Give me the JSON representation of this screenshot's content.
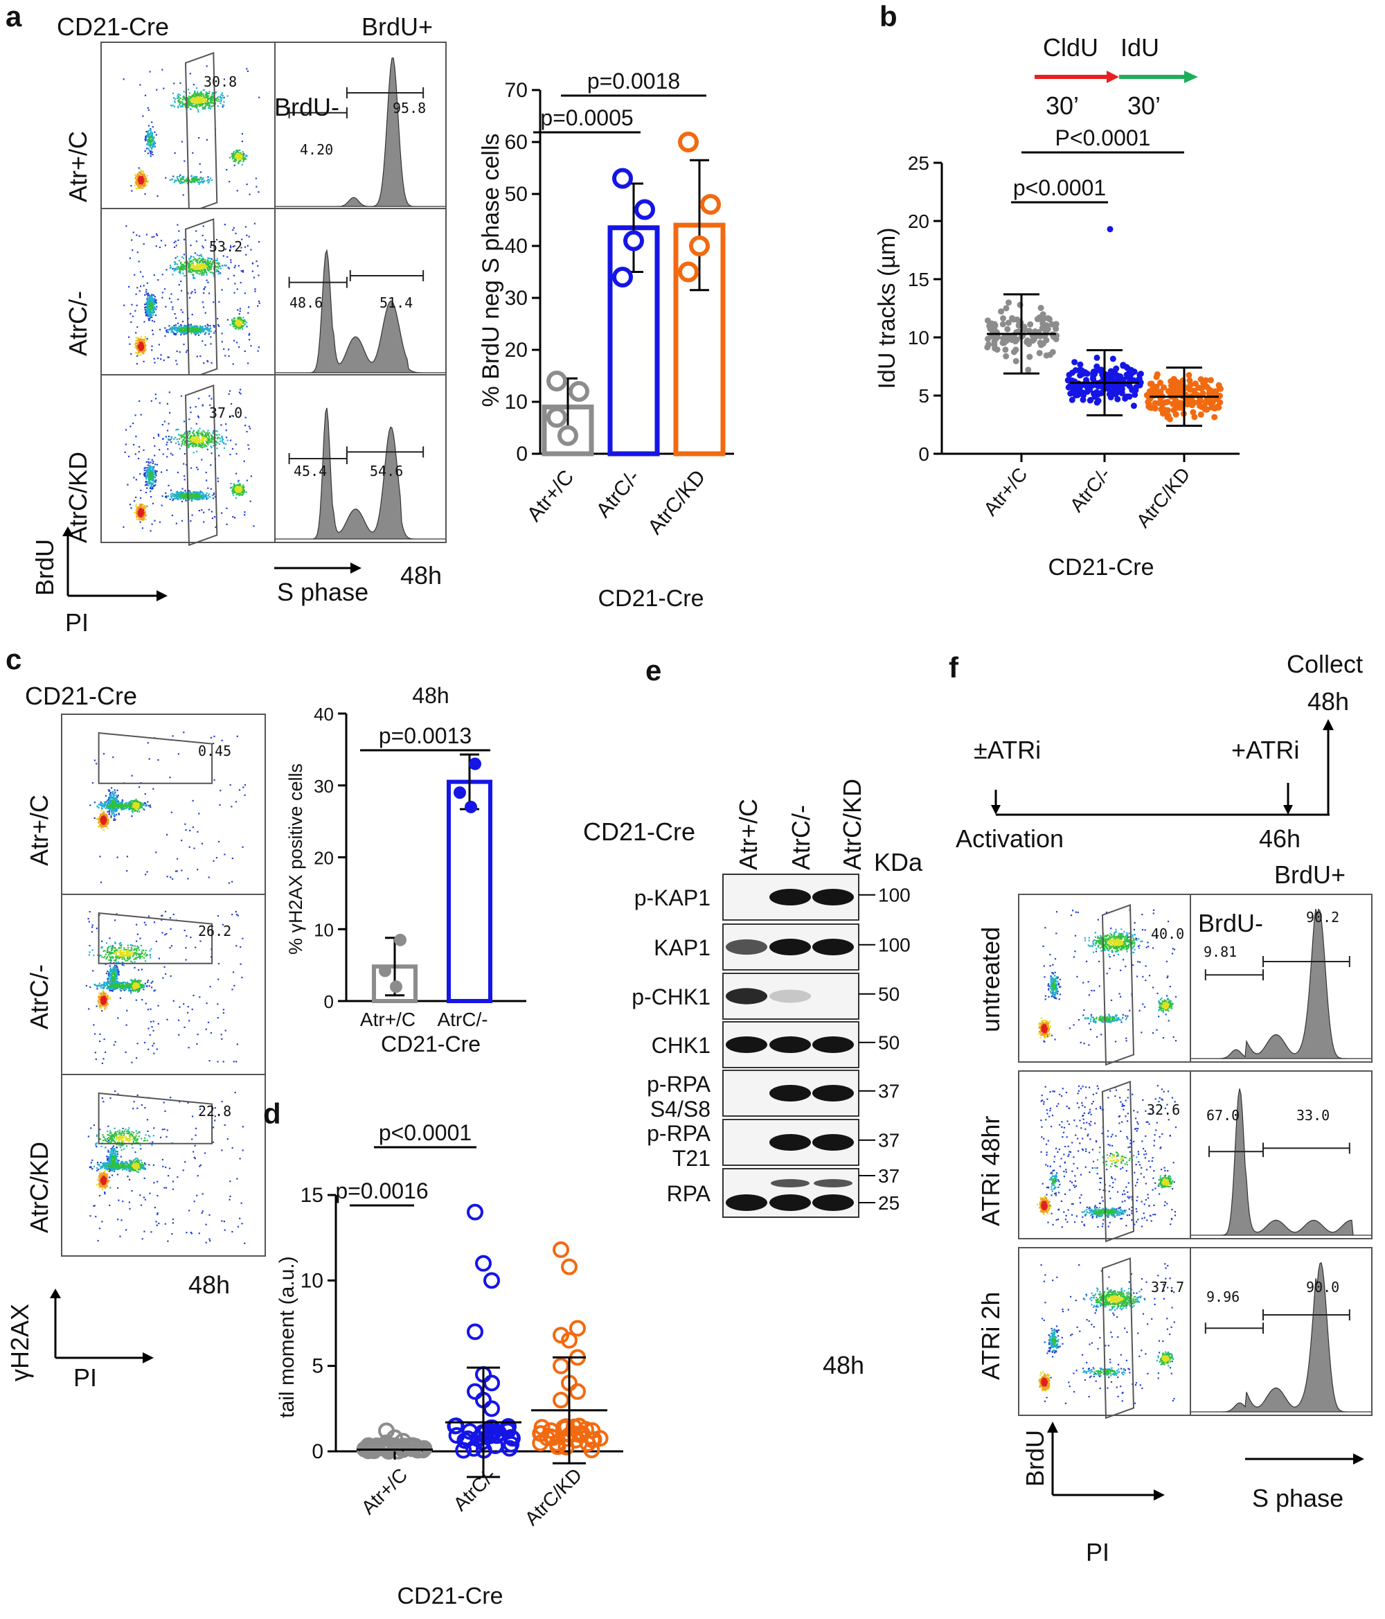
{
  "panel_letters": {
    "a": "a",
    "b": "b",
    "c": "c",
    "d": "d",
    "e": "e",
    "f": "f"
  },
  "colors": {
    "gray": "#8c8c8c",
    "blue": "#1515e6",
    "orange": "#f26a10",
    "red": "#e82020",
    "green": "#1eae5a",
    "hist_fill": "#8a8a8a"
  },
  "panel_a": {
    "cre_label": "CD21-Cre",
    "rows": [
      {
        "label": "Atr+/C",
        "gate": "30.8",
        "neg": "4.20",
        "pos": "95.8"
      },
      {
        "label": "AtrC/-",
        "gate": "53.2",
        "neg": "48.6",
        "pos": "51.4"
      },
      {
        "label": "AtrC/KD",
        "gate": "37.0",
        "neg": "45.4",
        "pos": "54.6"
      }
    ],
    "brdu_pos": "BrdU+",
    "brdu_neg": "BrdU-",
    "axis_y": "BrdU",
    "axis_x": "PI",
    "s_phase": "S phase",
    "time": "48h"
  },
  "chart_a": {
    "type": "bar",
    "categories": [
      "Atr+/C",
      "AtrC/-",
      "AtrC/KD"
    ],
    "values": [
      9,
      43.5,
      44
    ],
    "sd": [
      5.5,
      8.5,
      12.5
    ],
    "points": [
      [
        14,
        12,
        3.5,
        7
      ],
      [
        53,
        47,
        41,
        34
      ],
      [
        60,
        48,
        40,
        35
      ]
    ],
    "ylabel": "% BrdU neg S phase cells",
    "xlabel": "CD21-Cre",
    "ylim": [
      0,
      70
    ],
    "yticks": [
      0,
      10,
      20,
      30,
      40,
      50,
      60,
      70
    ],
    "pvalues": [
      "p=0.0005",
      "p=0.0018"
    ]
  },
  "panel_b": {
    "cldu": "CldU",
    "idu": "IdU",
    "t1": "30’",
    "t2": "30’"
  },
  "chart_b": {
    "type": "scatter",
    "categories": [
      "Atr+/C",
      "AtrC/-",
      "AtrC/KD"
    ],
    "means": [
      10.3,
      6.1,
      4.9
    ],
    "sd": [
      3.4,
      2.8,
      2.5
    ],
    "ylabel": "IdU tracks (µm)",
    "xlabel": "CD21-Cre",
    "ylim": [
      0,
      25
    ],
    "yticks": [
      0,
      5,
      10,
      15,
      20,
      25
    ],
    "pvalues": [
      "p<0.0001",
      "P<0.0001"
    ]
  },
  "panel_c": {
    "cre_label": "CD21-Cre",
    "rows": [
      {
        "label": "Atr+/C",
        "gate": "0.45"
      },
      {
        "label": "AtrC/-",
        "gate": "26.2"
      },
      {
        "label": "AtrC/KD",
        "gate": "22.8"
      }
    ],
    "axis_y": "γH2AX",
    "axis_x": "PI",
    "time": "48h"
  },
  "chart_c": {
    "type": "bar",
    "title": "48h",
    "categories": [
      "Atr+/C",
      "AtrC/-"
    ],
    "values": [
      4.8,
      30.5
    ],
    "sd": [
      4,
      3.8
    ],
    "points": [
      [
        8.5,
        4.2,
        2
      ],
      [
        33,
        29,
        27
      ]
    ],
    "ylabel": "% γH2AX positive cells",
    "xlabel": "CD21-Cre",
    "ylim": [
      0,
      40
    ],
    "yticks": [
      0,
      10,
      20,
      30,
      40
    ],
    "pvalues": [
      "p=0.0013"
    ]
  },
  "chart_d": {
    "type": "scatter",
    "categories": [
      "Atr+/C",
      "AtrC/-",
      "AtrC/KD"
    ],
    "means": [
      0.1,
      1.7,
      2.4
    ],
    "sd": [
      0.2,
      3.2,
      3.1
    ],
    "outliers": [
      [
        1.2,
        0.8,
        0.6,
        0.5
      ],
      [
        14,
        11,
        10,
        7,
        4.5,
        4,
        3.5,
        3,
        2.5
      ],
      [
        11.8,
        10.8,
        7.2,
        6.8,
        6.5,
        5.5,
        5,
        4,
        3.5,
        3
      ]
    ],
    "ylabel": "tail moment (a.u.)",
    "xlabel": "CD21-Cre",
    "ylim": [
      0,
      15
    ],
    "yticks": [
      0,
      5,
      10,
      15
    ],
    "pvalues": [
      "p=0.0016",
      "p<0.0001"
    ]
  },
  "panel_e": {
    "cre_label": "CD21-Cre",
    "lanes": [
      "Atr+/C",
      "AtrC/-",
      "AtrC/KD"
    ],
    "kda_label": "KDa",
    "blots": [
      {
        "name": "p-KAP1",
        "name2": "",
        "marker": "100",
        "bands": [
          0,
          1,
          1
        ]
      },
      {
        "name": "KAP1",
        "name2": "",
        "marker": "100",
        "bands": [
          0.7,
          1,
          1
        ]
      },
      {
        "name": "p-CHK1",
        "name2": "",
        "marker": "50",
        "bands": [
          0.9,
          0.15,
          0
        ]
      },
      {
        "name": "CHK1",
        "name2": "",
        "marker": "50",
        "bands": [
          1,
          1,
          1
        ]
      },
      {
        "name": "p-RPA",
        "name2": "S4/S8",
        "marker": "37",
        "bands": [
          0,
          1,
          1
        ]
      },
      {
        "name": "p-RPA",
        "name2": "T21",
        "marker": "37",
        "bands": [
          0,
          1,
          1
        ]
      },
      {
        "name": "RPA",
        "name2": "",
        "marker": "37",
        "marker2": "25",
        "bands": [
          1,
          1,
          1
        ]
      }
    ],
    "time": "48h"
  },
  "panel_f": {
    "collect": "Collect",
    "collect_time": "48h",
    "atri_pm": "±ATRi",
    "atri_plus": "+ATRi",
    "activation": "Activation",
    "t46": "46h",
    "brdu_pos": "BrdU+",
    "brdu_neg": "BrdU-",
    "rows": [
      {
        "label": "untreated",
        "gate": "40.0",
        "neg": "9.81",
        "pos": "90.2"
      },
      {
        "label": "ATRi 48hr",
        "gate": "32.6",
        "neg": "67.0",
        "pos": "33.0"
      },
      {
        "label": "ATRi 2h",
        "gate": "37.7",
        "neg": "9.96",
        "pos": "90.0"
      }
    ],
    "axis_y": "BrdU",
    "axis_x": "PI",
    "s_phase": "S phase"
  }
}
